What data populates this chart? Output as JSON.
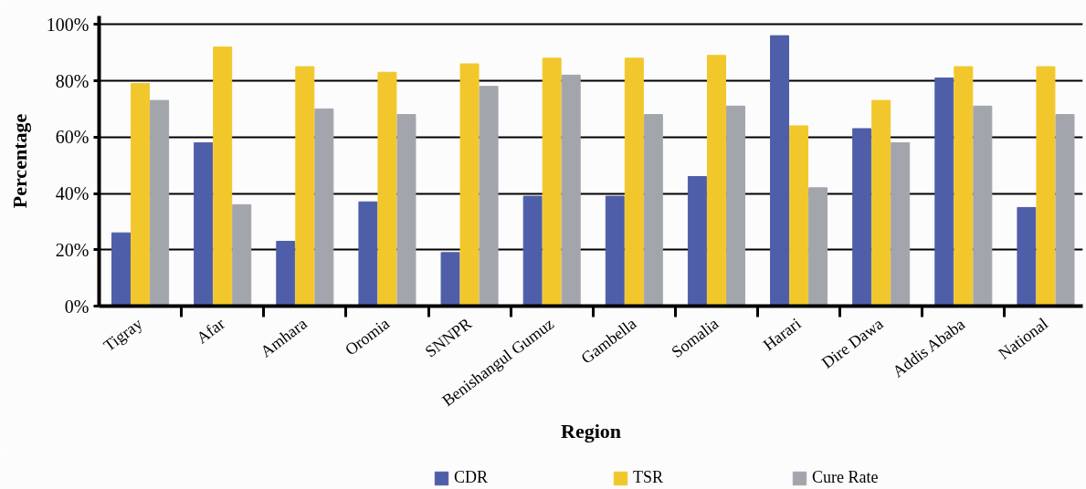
{
  "chart_data": {
    "type": "bar",
    "xlabel": "Region",
    "ylabel": "Percentage",
    "categories": [
      "Tigray",
      "Afar",
      "Amhara",
      "Oromia",
      "SNNPR",
      "Benishangul Gumuz",
      "Gambella",
      "Somalia",
      "Harari",
      "Dire Dawa",
      "Addis Ababa",
      "National"
    ],
    "series": [
      {
        "name": "CDR",
        "color": "#4f5ea8",
        "values": [
          26,
          58,
          23,
          37,
          19,
          39,
          39,
          46,
          96,
          63,
          81,
          35
        ]
      },
      {
        "name": "TSR",
        "color": "#f2c72c",
        "values": [
          79,
          92,
          85,
          83,
          86,
          88,
          88,
          89,
          64,
          73,
          85,
          85
        ]
      },
      {
        "name": "Cure Rate",
        "color": "#a3a5ad",
        "values": [
          73,
          36,
          70,
          68,
          78,
          82,
          68,
          71,
          42,
          58,
          71,
          68
        ]
      }
    ],
    "ylim": [
      0,
      103
    ],
    "yticks": [
      {
        "value": 0,
        "label": "0%"
      },
      {
        "value": 20,
        "label": "20%"
      },
      {
        "value": 40,
        "label": "40%"
      },
      {
        "value": 60,
        "label": "60%"
      },
      {
        "value": 80,
        "label": "80%"
      },
      {
        "value": 100,
        "label": "100%"
      }
    ],
    "grid": "y",
    "legend": "bottom"
  }
}
